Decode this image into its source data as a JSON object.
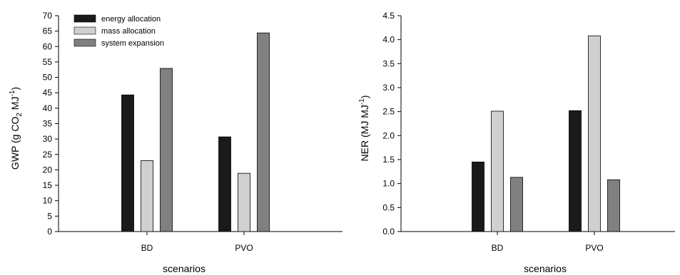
{
  "chart_data": [
    {
      "type": "bar",
      "xlabel": "scenarios",
      "ylabel_parts": [
        "GWP (g CO",
        "2",
        " MJ",
        "-1",
        ")"
      ],
      "categories": [
        "BD",
        "PVO"
      ],
      "ylim": [
        0,
        70
      ],
      "yticks": [
        "0",
        "5",
        "10",
        "15",
        "20",
        "25",
        "30",
        "35",
        "40",
        "45",
        "50",
        "55",
        "60",
        "65",
        "70"
      ],
      "series": [
        {
          "name": "energy allocation",
          "values": [
            44.3,
            30.7
          ],
          "color": "#1a1a1a"
        },
        {
          "name": "mass allocation",
          "values": [
            23.0,
            18.9
          ],
          "color": "#d0d0d0"
        },
        {
          "name": "system expansion",
          "values": [
            52.9,
            64.4
          ],
          "color": "#808080"
        }
      ],
      "legend": "top-left",
      "grid": false
    },
    {
      "type": "bar",
      "xlabel": "scenarios",
      "ylabel_parts": [
        "NER (MJ MJ",
        "-1",
        ")"
      ],
      "categories": [
        "BD",
        "PVO"
      ],
      "ylim": [
        0,
        4.5
      ],
      "yticks": [
        "0.0",
        "0.5",
        "1.0",
        "1.5",
        "2.0",
        "2.5",
        "3.0",
        "3.5",
        "4.0",
        "4.5"
      ],
      "series": [
        {
          "values": [
            1.45,
            2.52
          ],
          "color": "#1a1a1a"
        },
        {
          "values": [
            2.51,
            4.08
          ],
          "color": "#d0d0d0"
        },
        {
          "values": [
            1.13,
            1.08
          ],
          "color": "#808080"
        }
      ],
      "grid": false
    }
  ]
}
